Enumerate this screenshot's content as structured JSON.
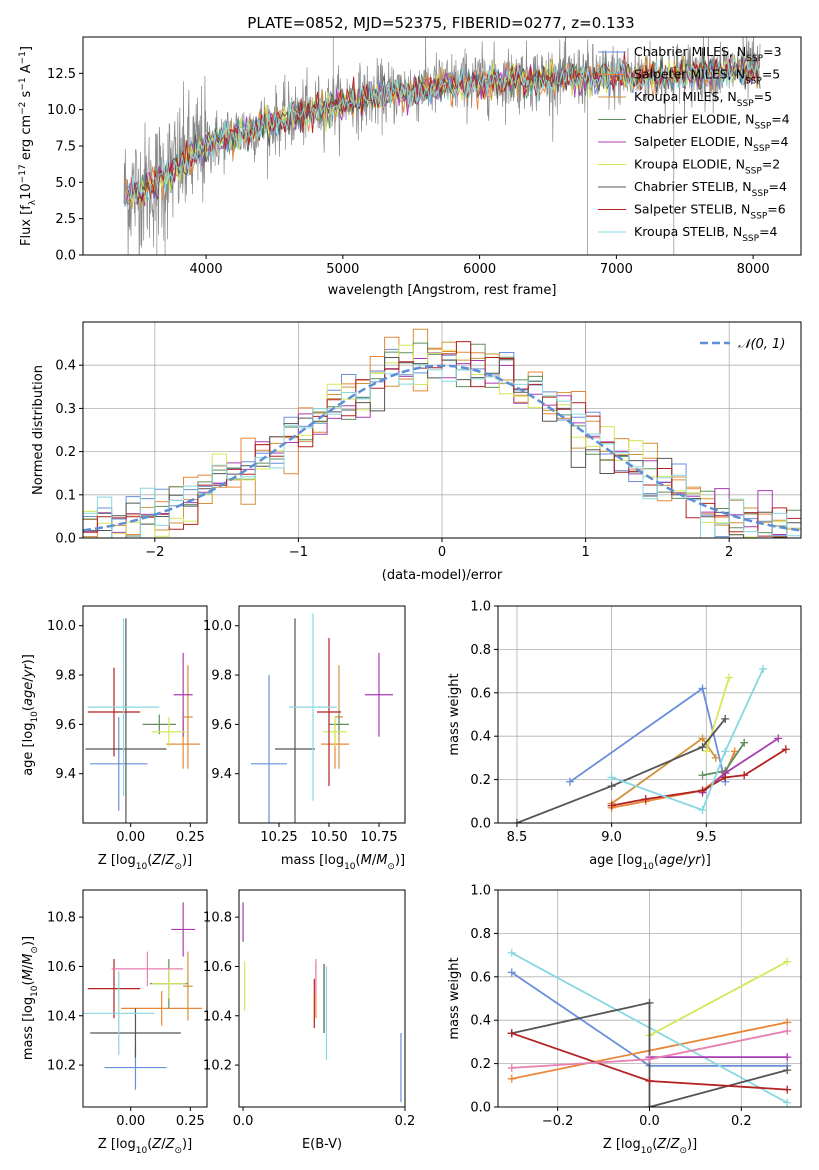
{
  "figure": {
    "title": "PLATE=0852, MJD=52375, FIBERID=0277, z=0.133",
    "colors": {
      "chabrier_miles": "#6a8fd8",
      "salpeter_miles": "#e8873a",
      "kroupa_miles": "#d2923a",
      "chabrier_elodie": "#5f8f5f",
      "salpeter_elodie": "#a83cb0",
      "kroupa_elodie": "#d4e85a",
      "chabrier_stelib": "#555555",
      "salpeter_stelib": "#b22222",
      "kroupa_stelib": "#87d8e0",
      "gauss": "#5b8fd6",
      "grid": "#b0b0b0"
    }
  },
  "chart_data": [
    {
      "id": "spectrum",
      "type": "line",
      "title": "PLATE=0852, MJD=52375, FIBERID=0277, z=0.133",
      "xlabel": "wavelength [Angstrom, rest frame]",
      "ylabel": "Flux [f_λ 10^-17 erg cm^-2 s^-1 A^-1]",
      "xlim": [
        3100,
        8350
      ],
      "ylim": [
        0,
        15
      ],
      "xticks": [
        4000,
        5000,
        6000,
        7000,
        8000
      ],
      "yticks": [
        0.0,
        2.5,
        5.0,
        7.5,
        10.0,
        12.5
      ],
      "legend_position": "top-right",
      "legend": [
        {
          "label": "Chabrier MILES, N",
          "sub": "SSP",
          "tail": "=3",
          "color": "#6a8fd8"
        },
        {
          "label": "Salpeter MILES, N",
          "sub": "SSP",
          "tail": "=5",
          "color": "#e8873a"
        },
        {
          "label": "Kroupa MILES, N",
          "sub": "SSP",
          "tail": "=5",
          "color": "#d2923a"
        },
        {
          "label": "Chabrier ELODIE, N",
          "sub": "SSP",
          "tail": "=4",
          "color": "#5f8f5f"
        },
        {
          "label": "Salpeter ELODIE, N",
          "sub": "SSP",
          "tail": "=4",
          "color": "#a83cb0"
        },
        {
          "label": "Kroupa ELODIE, N",
          "sub": "SSP",
          "tail": "=2",
          "color": "#d4e85a"
        },
        {
          "label": "Chabrier STELIB, N",
          "sub": "SSP",
          "tail": "=4",
          "color": "#555555"
        },
        {
          "label": "Salpeter STELIB, N",
          "sub": "SSP",
          "tail": "=6",
          "color": "#b22222"
        },
        {
          "label": "Kroupa STELIB, N",
          "sub": "SSP",
          "tail": "=4",
          "color": "#87d8e0"
        }
      ],
      "continuum": [
        [
          3400,
          4.2
        ],
        [
          3600,
          4.8
        ],
        [
          3800,
          6.2
        ],
        [
          4000,
          7.6
        ],
        [
          4200,
          8.3
        ],
        [
          4500,
          9.2
        ],
        [
          5000,
          10.6
        ],
        [
          5500,
          11.4
        ],
        [
          6000,
          12.0
        ],
        [
          6500,
          12.2
        ],
        [
          7000,
          12.3
        ],
        [
          7500,
          12.5
        ],
        [
          8000,
          12.8
        ],
        [
          8050,
          12.6
        ]
      ]
    },
    {
      "id": "residuals",
      "type": "line",
      "xlabel": "(data-model)/error",
      "ylabel": "Normed distribution",
      "xlim": [
        -2.5,
        2.5
      ],
      "ylim": [
        0,
        0.5
      ],
      "xticks": [
        -2,
        -1,
        0,
        1,
        2
      ],
      "yticks": [
        0.0,
        0.1,
        0.2,
        0.3,
        0.4
      ],
      "legend_position": "top-right",
      "legend": [
        {
          "label": "𝒩(0, 1)",
          "color": "#5b8fd6",
          "style": "dashed"
        }
      ],
      "gaussian": {
        "mean": 0,
        "sigma": 1
      }
    },
    {
      "id": "age_vs_Z",
      "type": "scatter",
      "xlabel": "Z [log10(Z/Z☉)]",
      "ylabel": "age [log10(age/yr)]",
      "xlim": [
        -0.2,
        0.32
      ],
      "ylim": [
        9.2,
        10.08
      ],
      "xticks": [
        0.0,
        0.25
      ],
      "yticks": [
        9.4,
        9.6,
        9.8,
        10.0
      ],
      "points": [
        {
          "x": -0.05,
          "y": 9.44,
          "xerr": 0.12,
          "yerr": 0.19,
          "color": "#6a8fd8"
        },
        {
          "x": 0.22,
          "y": 9.52,
          "xerr": 0.07,
          "yerr": 0.1,
          "color": "#e8873a"
        },
        {
          "x": 0.24,
          "y": 9.63,
          "xerr": 0.02,
          "yerr": 0.21,
          "color": "#d2923a"
        },
        {
          "x": 0.12,
          "y": 9.6,
          "xerr": 0.07,
          "yerr": 0.04,
          "color": "#5f8f5f"
        },
        {
          "x": 0.22,
          "y": 9.72,
          "xerr": 0.04,
          "yerr": 0.17,
          "color": "#a83cb0"
        },
        {
          "x": 0.16,
          "y": 9.57,
          "xerr": 0.07,
          "yerr": 0.06,
          "color": "#d4e85a"
        },
        {
          "x": -0.02,
          "y": 9.5,
          "xerr": 0.17,
          "yerr": 0.53,
          "color": "#555555"
        },
        {
          "x": -0.07,
          "y": 9.65,
          "xerr": 0.11,
          "yerr": 0.18,
          "color": "#b22222"
        },
        {
          "x": -0.03,
          "y": 9.67,
          "xerr": 0.15,
          "yerr": 0.36,
          "color": "#87d8e0"
        }
      ]
    },
    {
      "id": "age_vs_mass",
      "type": "scatter",
      "xlabel": "mass [log10(M/M☉)]",
      "ylabel": "",
      "xlim": [
        10.05,
        10.88
      ],
      "ylim": [
        9.2,
        10.08
      ],
      "xticks": [
        10.25,
        10.5,
        10.75
      ],
      "yticks": [
        9.4,
        9.6,
        9.8,
        10.0
      ],
      "points": [
        {
          "x": 10.2,
          "y": 9.44,
          "xerr": 0.09,
          "yerr": 0.36,
          "color": "#6a8fd8"
        },
        {
          "x": 10.53,
          "y": 9.52,
          "xerr": 0.07,
          "yerr": 0.1,
          "color": "#e8873a"
        },
        {
          "x": 10.55,
          "y": 9.63,
          "xerr": 0.02,
          "yerr": 0.21,
          "color": "#d2923a"
        },
        {
          "x": 10.55,
          "y": 9.6,
          "xerr": 0.05,
          "yerr": 0.04,
          "color": "#5f8f5f"
        },
        {
          "x": 10.75,
          "y": 9.72,
          "xerr": 0.07,
          "yerr": 0.17,
          "color": "#a83cb0"
        },
        {
          "x": 10.53,
          "y": 9.57,
          "xerr": 0.06,
          "yerr": 0.06,
          "color": "#d4e85a"
        },
        {
          "x": 10.33,
          "y": 9.5,
          "xerr": 0.1,
          "yerr": 0.53,
          "color": "#555555"
        },
        {
          "x": 10.5,
          "y": 9.65,
          "xerr": 0.06,
          "yerr": 0.3,
          "color": "#b22222"
        },
        {
          "x": 10.42,
          "y": 9.67,
          "xerr": 0.12,
          "yerr": 0.38,
          "color": "#87d8e0"
        }
      ]
    },
    {
      "id": "weight_vs_age",
      "type": "line",
      "xlabel": "age [log10(age/yr)]",
      "ylabel": "mass weight",
      "xlim": [
        8.4,
        10.0
      ],
      "ylim": [
        0,
        1
      ],
      "xticks": [
        8.5,
        9.0,
        9.5
      ],
      "yticks": [
        0.0,
        0.2,
        0.4,
        0.6,
        0.8,
        1.0
      ],
      "series": [
        {
          "color": "#6a8fd8",
          "x": [
            8.78,
            9.48,
            9.6
          ],
          "y": [
            0.19,
            0.62,
            0.19
          ]
        },
        {
          "color": "#e8873a",
          "x": [
            9.0,
            9.18,
            9.48,
            9.6,
            9.65
          ],
          "y": [
            0.07,
            0.1,
            0.15,
            0.23,
            0.33
          ]
        },
        {
          "color": "#d2923a",
          "x": [
            9.0,
            9.48,
            9.55
          ],
          "y": [
            0.09,
            0.39,
            0.3
          ]
        },
        {
          "color": "#5f8f5f",
          "x": [
            9.48,
            9.6,
            9.7
          ],
          "y": [
            0.22,
            0.24,
            0.37
          ]
        },
        {
          "color": "#a83cb0",
          "x": [
            9.48,
            9.6,
            9.88
          ],
          "y": [
            0.14,
            0.23,
            0.39
          ]
        },
        {
          "color": "#d4e85a",
          "x": [
            9.5,
            9.62
          ],
          "y": [
            0.33,
            0.67
          ]
        },
        {
          "color": "#555555",
          "x": [
            8.5,
            9.0,
            9.48,
            9.6
          ],
          "y": [
            0.0,
            0.17,
            0.35,
            0.48
          ]
        },
        {
          "color": "#b22222",
          "x": [
            9.0,
            9.18,
            9.48,
            9.6,
            9.7,
            9.92
          ],
          "y": [
            0.08,
            0.11,
            0.15,
            0.21,
            0.22,
            0.34
          ]
        },
        {
          "color": "#87d8e0",
          "x": [
            9.0,
            9.48,
            9.6,
            9.8
          ],
          "y": [
            0.21,
            0.06,
            0.33,
            0.71
          ]
        }
      ]
    },
    {
      "id": "mass_vs_Z",
      "type": "scatter",
      "xlabel": "Z [log10(Z/Z☉)]",
      "ylabel": "mass [log10(M/M☉)]",
      "xlim": [
        -0.2,
        0.32
      ],
      "ylim": [
        10.03,
        10.91
      ],
      "xticks": [
        0.0,
        0.25
      ],
      "yticks": [
        10.2,
        10.4,
        10.6,
        10.8
      ],
      "points": [
        {
          "x": 0.02,
          "y": 10.19,
          "xerr": 0.13,
          "yerr": 0.09,
          "color": "#6a8fd8"
        },
        {
          "x": 0.13,
          "y": 10.43,
          "xerr": 0.17,
          "yerr": 0.07,
          "color": "#e8873a"
        },
        {
          "x": 0.24,
          "y": 10.52,
          "xerr": 0.02,
          "yerr": 0.14,
          "color": "#d2923a"
        },
        {
          "x": 0.16,
          "y": 10.53,
          "xerr": 0.08,
          "yerr": 0.1,
          "color": "#5f8f5f"
        },
        {
          "x": 0.22,
          "y": 10.75,
          "xerr": 0.05,
          "yerr": 0.11,
          "color": "#a83cb0"
        },
        {
          "x": 0.16,
          "y": 10.53,
          "xerr": 0.07,
          "yerr": 0.06,
          "color": "#d4e85a"
        },
        {
          "x": 0.02,
          "y": 10.33,
          "xerr": 0.19,
          "yerr": 0.1,
          "color": "#555555"
        },
        {
          "x": -0.07,
          "y": 10.51,
          "xerr": 0.11,
          "yerr": 0.12,
          "color": "#b22222"
        },
        {
          "x": -0.05,
          "y": 10.41,
          "xerr": 0.15,
          "yerr": 0.17,
          "color": "#87d8e0"
        },
        {
          "x": 0.07,
          "y": 10.59,
          "xerr": 0.15,
          "yerr": 0.07,
          "color": "#e87fb0"
        }
      ]
    },
    {
      "id": "mass_vs_ebv",
      "type": "scatter",
      "xlabel": "E(B-V)",
      "ylabel": "",
      "xlim": [
        -0.005,
        0.2
      ],
      "ylim": [
        10.03,
        10.91
      ],
      "xticks": [
        0.0,
        0.2
      ],
      "yticks": [
        10.2,
        10.4,
        10.6,
        10.8
      ],
      "points": [
        {
          "x": 0.195,
          "y": 10.19,
          "yerr": 0.14,
          "color": "#6a8fd8"
        },
        {
          "x": 0.09,
          "y": 10.5,
          "yerr": 0.11,
          "color": "#e8873a"
        },
        {
          "x": 0.002,
          "y": 10.52,
          "yerr": 0.1,
          "color": "#d4e85a"
        },
        {
          "x": 0.0,
          "y": 10.78,
          "yerr": 0.08,
          "color": "#a83cb0"
        },
        {
          "x": 0.1,
          "y": 10.47,
          "yerr": 0.14,
          "color": "#555555"
        },
        {
          "x": 0.09,
          "y": 10.56,
          "yerr": 0.07,
          "color": "#e87fb0"
        },
        {
          "x": 0.103,
          "y": 10.41,
          "yerr": 0.19,
          "color": "#87d8e0"
        },
        {
          "x": 0.088,
          "y": 10.45,
          "yerr": 0.1,
          "color": "#b22222"
        }
      ]
    },
    {
      "id": "weight_vs_Z",
      "type": "line",
      "xlabel": "Z [log10(Z/Z☉)]",
      "ylabel": "mass weight",
      "xlim": [
        -0.33,
        0.33
      ],
      "ylim": [
        0,
        1
      ],
      "xticks": [
        -0.2,
        0.0,
        0.2
      ],
      "yticks": [
        0.0,
        0.2,
        0.4,
        0.6,
        0.8,
        1.0
      ],
      "series": [
        {
          "color": "#6a8fd8",
          "x": [
            -0.3,
            0.0,
            0.3
          ],
          "y": [
            0.62,
            0.19,
            0.19
          ]
        },
        {
          "color": "#e8873a",
          "x": [
            -0.3,
            0.3
          ],
          "y": [
            0.13,
            0.39
          ]
        },
        {
          "color": "#87d8e0",
          "x": [
            -0.3,
            0.3
          ],
          "y": [
            0.71,
            0.02
          ]
        },
        {
          "color": "#d4e85a",
          "x": [
            0.0,
            0.3
          ],
          "y": [
            0.33,
            0.67
          ]
        },
        {
          "color": "#555555",
          "x": [
            -0.3,
            0.0,
            0.0,
            0.3
          ],
          "y": [
            0.34,
            0.48,
            0.0,
            0.17
          ]
        },
        {
          "color": "#b22222",
          "x": [
            -0.3,
            0.0,
            0.3
          ],
          "y": [
            0.34,
            0.12,
            0.08
          ]
        },
        {
          "color": "#a83cb0",
          "x": [
            0.0,
            0.3
          ],
          "y": [
            0.23,
            0.23
          ]
        },
        {
          "color": "#e87fb0",
          "x": [
            -0.3,
            0.0,
            0.3
          ],
          "y": [
            0.18,
            0.22,
            0.35
          ]
        }
      ]
    }
  ]
}
